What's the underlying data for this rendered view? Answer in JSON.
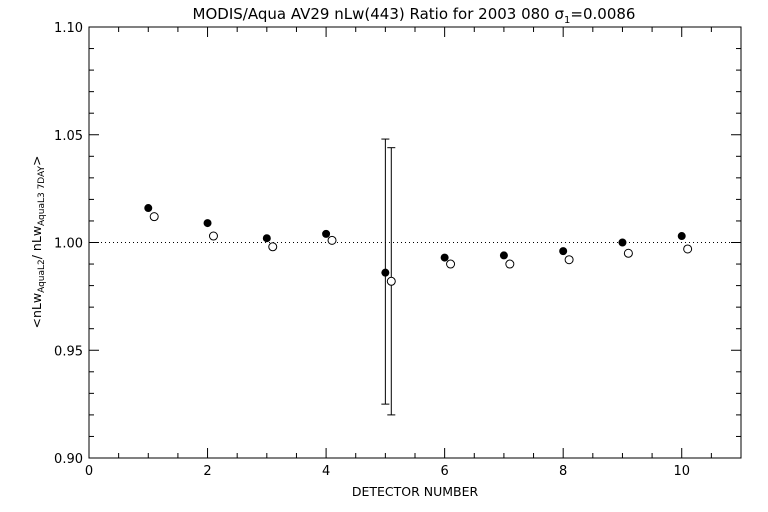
{
  "chart_data": {
    "type": "scatter",
    "title": "MODIS/Aqua AV29 nLw(443) Ratio for 2003 080 σ",
    "title_sub": "1",
    "title_tail": "=0.0086",
    "xlabel": "DETECTOR NUMBER",
    "ylabel": {
      "open": "<nLw",
      "sub1": "AquaL2",
      "mid": "/ nLw",
      "sub2": "AquaL3 7DAY",
      "close": ">"
    },
    "xlim": [
      0,
      11
    ],
    "ylim": [
      0.9,
      1.1
    ],
    "x_ticks": [
      "0",
      "2",
      "4",
      "6",
      "8",
      "10"
    ],
    "y_ticks": [
      "0.90",
      "0.95",
      "1.00",
      "1.05",
      "1.10"
    ],
    "reference_line": {
      "y": 1.0,
      "style": "dotted"
    },
    "grid": false,
    "series": [
      {
        "marker": "filled-circle",
        "x": [
          1,
          2,
          3,
          4,
          5,
          6,
          7,
          8,
          9,
          10
        ],
        "y": [
          1.016,
          1.009,
          1.002,
          1.004,
          0.986,
          0.993,
          0.994,
          0.996,
          1.0,
          1.003
        ],
        "error_bars": [
          {
            "x": 5,
            "low": 0.925,
            "high": 1.048
          }
        ]
      },
      {
        "marker": "open-circle",
        "x": [
          1.1,
          2.1,
          3.1,
          4.1,
          5.1,
          6.1,
          7.1,
          8.1,
          9.1,
          10.1
        ],
        "y": [
          1.012,
          1.003,
          0.998,
          1.001,
          0.982,
          0.99,
          0.99,
          0.992,
          0.995,
          0.997
        ],
        "error_bars": [
          {
            "x": 5.1,
            "low": 0.92,
            "high": 1.044
          }
        ]
      }
    ]
  }
}
